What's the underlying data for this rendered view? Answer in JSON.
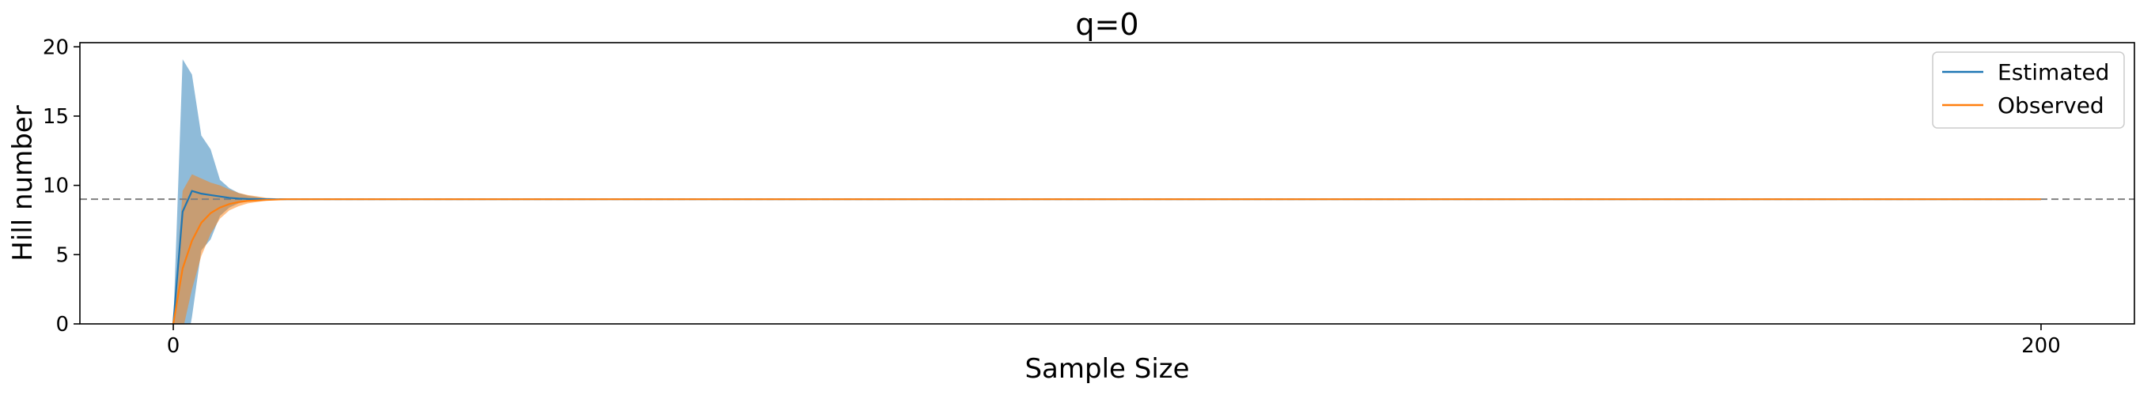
{
  "chart_data": {
    "type": "line",
    "title": "q=0",
    "xlabel": "Sample Size",
    "ylabel": "Hill number",
    "xlim": [
      -10,
      210
    ],
    "ylim": [
      0,
      20.3
    ],
    "xticks": [
      0,
      200
    ],
    "yticks": [
      0,
      5,
      10,
      15,
      20
    ],
    "grid": false,
    "legend_position": "top-right",
    "reference_line": {
      "y": 9,
      "style": "dashed",
      "color": "#808080"
    },
    "series": [
      {
        "name": "Estimated",
        "color": "#1f77b4",
        "x": [
          0,
          1,
          2,
          3,
          4,
          5,
          6,
          7,
          8,
          10,
          12,
          15,
          20,
          50,
          100,
          150,
          200
        ],
        "y": [
          0,
          8.1,
          9.6,
          9.4,
          9.3,
          9.2,
          9.1,
          9.05,
          9.02,
          9.0,
          9.0,
          9.0,
          9.0,
          9.0,
          9.0,
          9.0,
          9.0
        ],
        "ci_lower": [
          0,
          -3.2,
          0.5,
          5.3,
          6.1,
          7.8,
          8.4,
          8.7,
          8.85,
          8.95,
          9.0,
          9.0,
          9.0,
          9.0,
          9.0,
          9.0,
          9.0
        ],
        "ci_upper": [
          0,
          19.1,
          18.0,
          13.6,
          12.6,
          10.4,
          9.8,
          9.45,
          9.25,
          9.05,
          9.0,
          9.0,
          9.0,
          9.0,
          9.0,
          9.0,
          9.0
        ]
      },
      {
        "name": "Observed",
        "color": "#ff7f0e",
        "x": [
          0,
          1,
          2,
          3,
          4,
          5,
          6,
          7,
          8,
          10,
          12,
          15,
          20,
          50,
          100,
          150,
          200
        ],
        "y": [
          0,
          4.0,
          6.0,
          7.3,
          8.0,
          8.4,
          8.65,
          8.8,
          8.88,
          8.95,
          9.0,
          9.0,
          9.0,
          9.0,
          9.0,
          9.0,
          9.0
        ],
        "ci_lower": [
          0,
          -0.5,
          2.5,
          4.9,
          6.5,
          7.6,
          8.2,
          8.5,
          8.7,
          8.9,
          8.95,
          9.0,
          9.0,
          9.0,
          9.0,
          9.0,
          9.0
        ],
        "ci_upper": [
          0,
          9.6,
          10.8,
          10.5,
          10.2,
          10.0,
          9.7,
          9.45,
          9.3,
          9.1,
          9.02,
          9.0,
          9.0,
          9.0,
          9.0,
          9.0,
          9.0
        ]
      }
    ]
  }
}
